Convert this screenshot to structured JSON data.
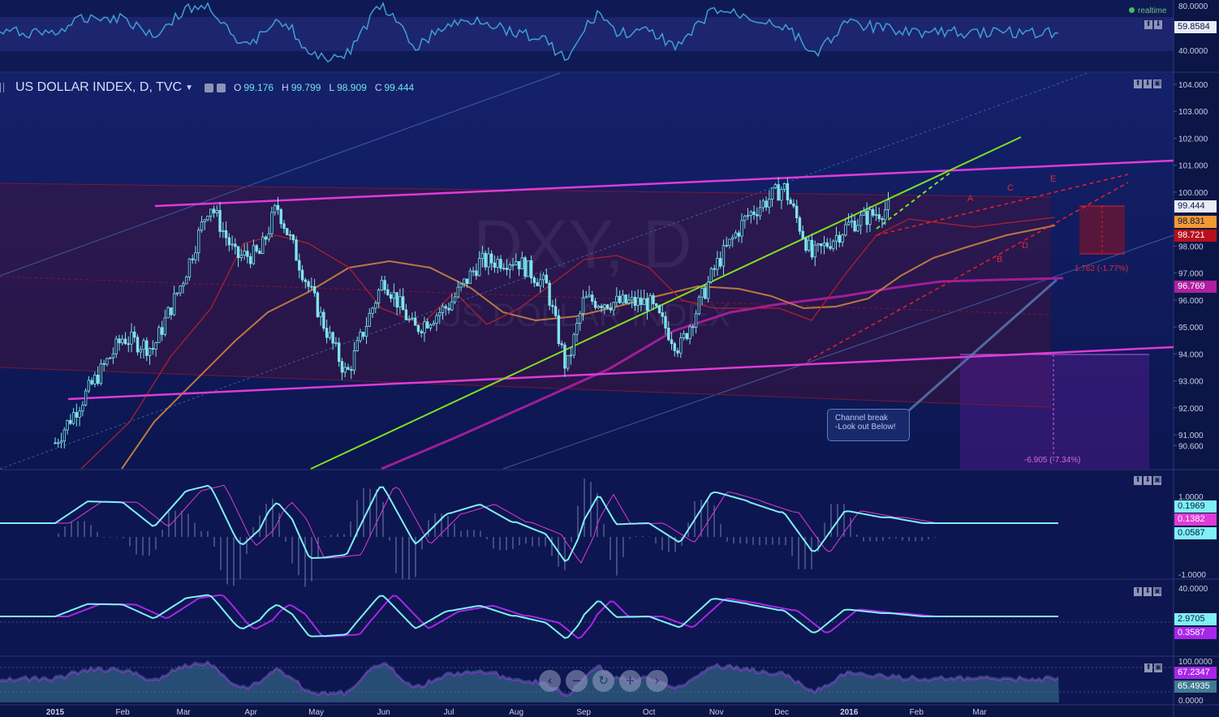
{
  "window": {
    "realtime_label": "realtime"
  },
  "header": {
    "symbol": "US DOLLAR INDEX, D, TVC",
    "open_label": "O",
    "open": "99.176",
    "high_label": "H",
    "high": "99.799",
    "low_label": "L",
    "low": "98.909",
    "close_label": "C",
    "close": "99.444"
  },
  "watermark": {
    "title": "DXY, D",
    "subtitle": "US DOLLAR INDEX"
  },
  "annotations": {
    "note": "Channel break\n-Look out Below!",
    "waves": [
      "A",
      "B",
      "C",
      "D",
      "E"
    ],
    "range_small": "1.762 (-1.77%)",
    "range_big": "-6.905 (-7.34%)"
  },
  "price_tags": [
    {
      "label": "99.444",
      "bg": "#e8ecf5",
      "fg": "#0b1546"
    },
    {
      "label": "98.831",
      "bg": "#f29a33",
      "fg": "#0b1546"
    },
    {
      "label": "98.721",
      "bg": "#b7101c",
      "fg": "#ffffff"
    },
    {
      "label": "96.769",
      "bg": "#b01fa0",
      "fg": "#ffffff"
    }
  ],
  "rsi_tag": {
    "label": "59.8584"
  },
  "macd_tags": [
    "0.1969",
    "0.1382",
    "0.0587"
  ],
  "osc2_tags": [
    "2.9705",
    "0.3587"
  ],
  "osc3_tags": [
    "67.2347",
    "65.4935"
  ],
  "zoom_buttons": [
    "‹",
    "−",
    "↻",
    "+",
    "›"
  ],
  "colors": {
    "background": "#0b1546",
    "candle_up": "#7fe4ea",
    "candle_down": "#7fe4ea",
    "resistance": "#e03ad8",
    "uptrend": "#7ee020",
    "wedge": "#e01f2f",
    "ma_short": "#b21f2c",
    "ma_mid": "#b97842",
    "ma_long": "#a01d9a"
  },
  "chart_data": {
    "type": "line",
    "title": "US DOLLAR INDEX, D, TVC",
    "x": [
      "2015-01-01",
      "2015-01-15",
      "2015-02-01",
      "2015-02-15",
      "2015-03-01",
      "2015-03-13",
      "2015-03-25",
      "2015-04-05",
      "2015-04-13",
      "2015-04-25",
      "2015-05-05",
      "2015-05-15",
      "2015-06-01",
      "2015-06-15",
      "2015-07-01",
      "2015-07-15",
      "2015-08-01",
      "2015-08-15",
      "2015-08-24",
      "2015-09-01",
      "2015-09-15",
      "2015-10-01",
      "2015-10-15",
      "2015-11-01",
      "2015-11-15",
      "2015-12-02",
      "2015-12-15",
      "2016-01-01",
      "2016-01-20"
    ],
    "series": [
      {
        "values": [
          90.7,
          92.5,
          94.6,
          94.2,
          96.8,
          99.6,
          97.6,
          97.7,
          99.5,
          97.0,
          95.0,
          93.2,
          96.8,
          94.9,
          95.8,
          97.4,
          97.5,
          96.5,
          93.4,
          96.0,
          95.9,
          95.9,
          94.2,
          97.3,
          99.1,
          100.2,
          97.6,
          98.8,
          99.444
        ]
      }
    ],
    "x_ticks": [
      "2015",
      "Feb",
      "Mar",
      "Apr",
      "May",
      "Jun",
      "Jul",
      "Aug",
      "Sep",
      "Oct",
      "Nov",
      "Dec",
      "2016",
      "Feb",
      "Mar"
    ],
    "y_ticks": [
      "104.000",
      "103.000",
      "102.000",
      "101.000",
      "100.000",
      "99.000",
      "98.000",
      "97.000",
      "96.000",
      "95.000",
      "94.000",
      "93.000",
      "92.000",
      "91.000",
      "90.600"
    ],
    "ylim": [
      90.4,
      104.2
    ],
    "rsi_ticks": [
      "80.0000",
      "60.0000",
      "40.0000"
    ],
    "macd_ticks": [
      "1.0000",
      "-1.0000"
    ],
    "osc2_ticks": [
      "40.0000"
    ],
    "osc3_ticks": [
      "100.0000",
      "0.0000"
    ],
    "ohlc_last": {
      "open": 99.176,
      "high": 99.799,
      "low": 98.909,
      "close": 99.444
    }
  }
}
